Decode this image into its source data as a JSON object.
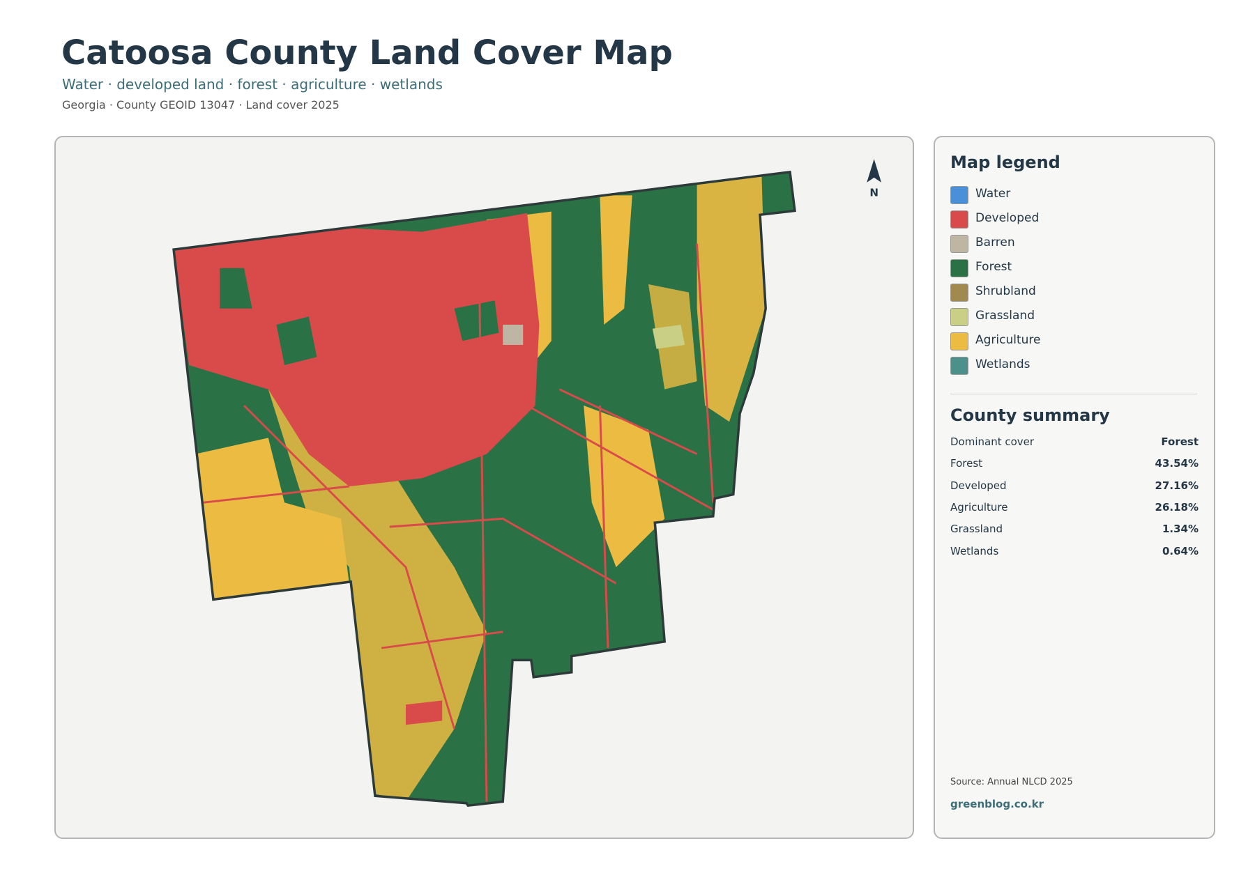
{
  "header": {
    "title": "Catoosa County Land Cover Map",
    "subtitle": "Water · developed land · forest · agriculture · wetlands",
    "meta": "Georgia · County GEOID 13047 · Land cover 2025"
  },
  "map": {
    "north_label": "N"
  },
  "legend": {
    "title": "Map legend",
    "items": [
      {
        "label": "Water",
        "color": "#4a90d9"
      },
      {
        "label": "Developed",
        "color": "#d94a4a"
      },
      {
        "label": "Barren",
        "color": "#bfb5a3"
      },
      {
        "label": "Forest",
        "color": "#2a7246"
      },
      {
        "label": "Shrubland",
        "color": "#a08a50"
      },
      {
        "label": "Grassland",
        "color": "#c9cf85"
      },
      {
        "label": "Agriculture",
        "color": "#ecbb42"
      },
      {
        "label": "Wetlands",
        "color": "#4d8f8a"
      }
    ]
  },
  "summary": {
    "title": "County summary",
    "rows": [
      {
        "label": "Dominant cover",
        "value": "Forest"
      },
      {
        "label": "Forest",
        "value": "43.54%"
      },
      {
        "label": "Developed",
        "value": "27.16%"
      },
      {
        "label": "Agriculture",
        "value": "26.18%"
      },
      {
        "label": "Grassland",
        "value": "1.34%"
      },
      {
        "label": "Wetlands",
        "value": "0.64%"
      }
    ]
  },
  "footer": {
    "source": "Source: Annual NLCD 2025",
    "site": "greenblog.co.kr"
  }
}
